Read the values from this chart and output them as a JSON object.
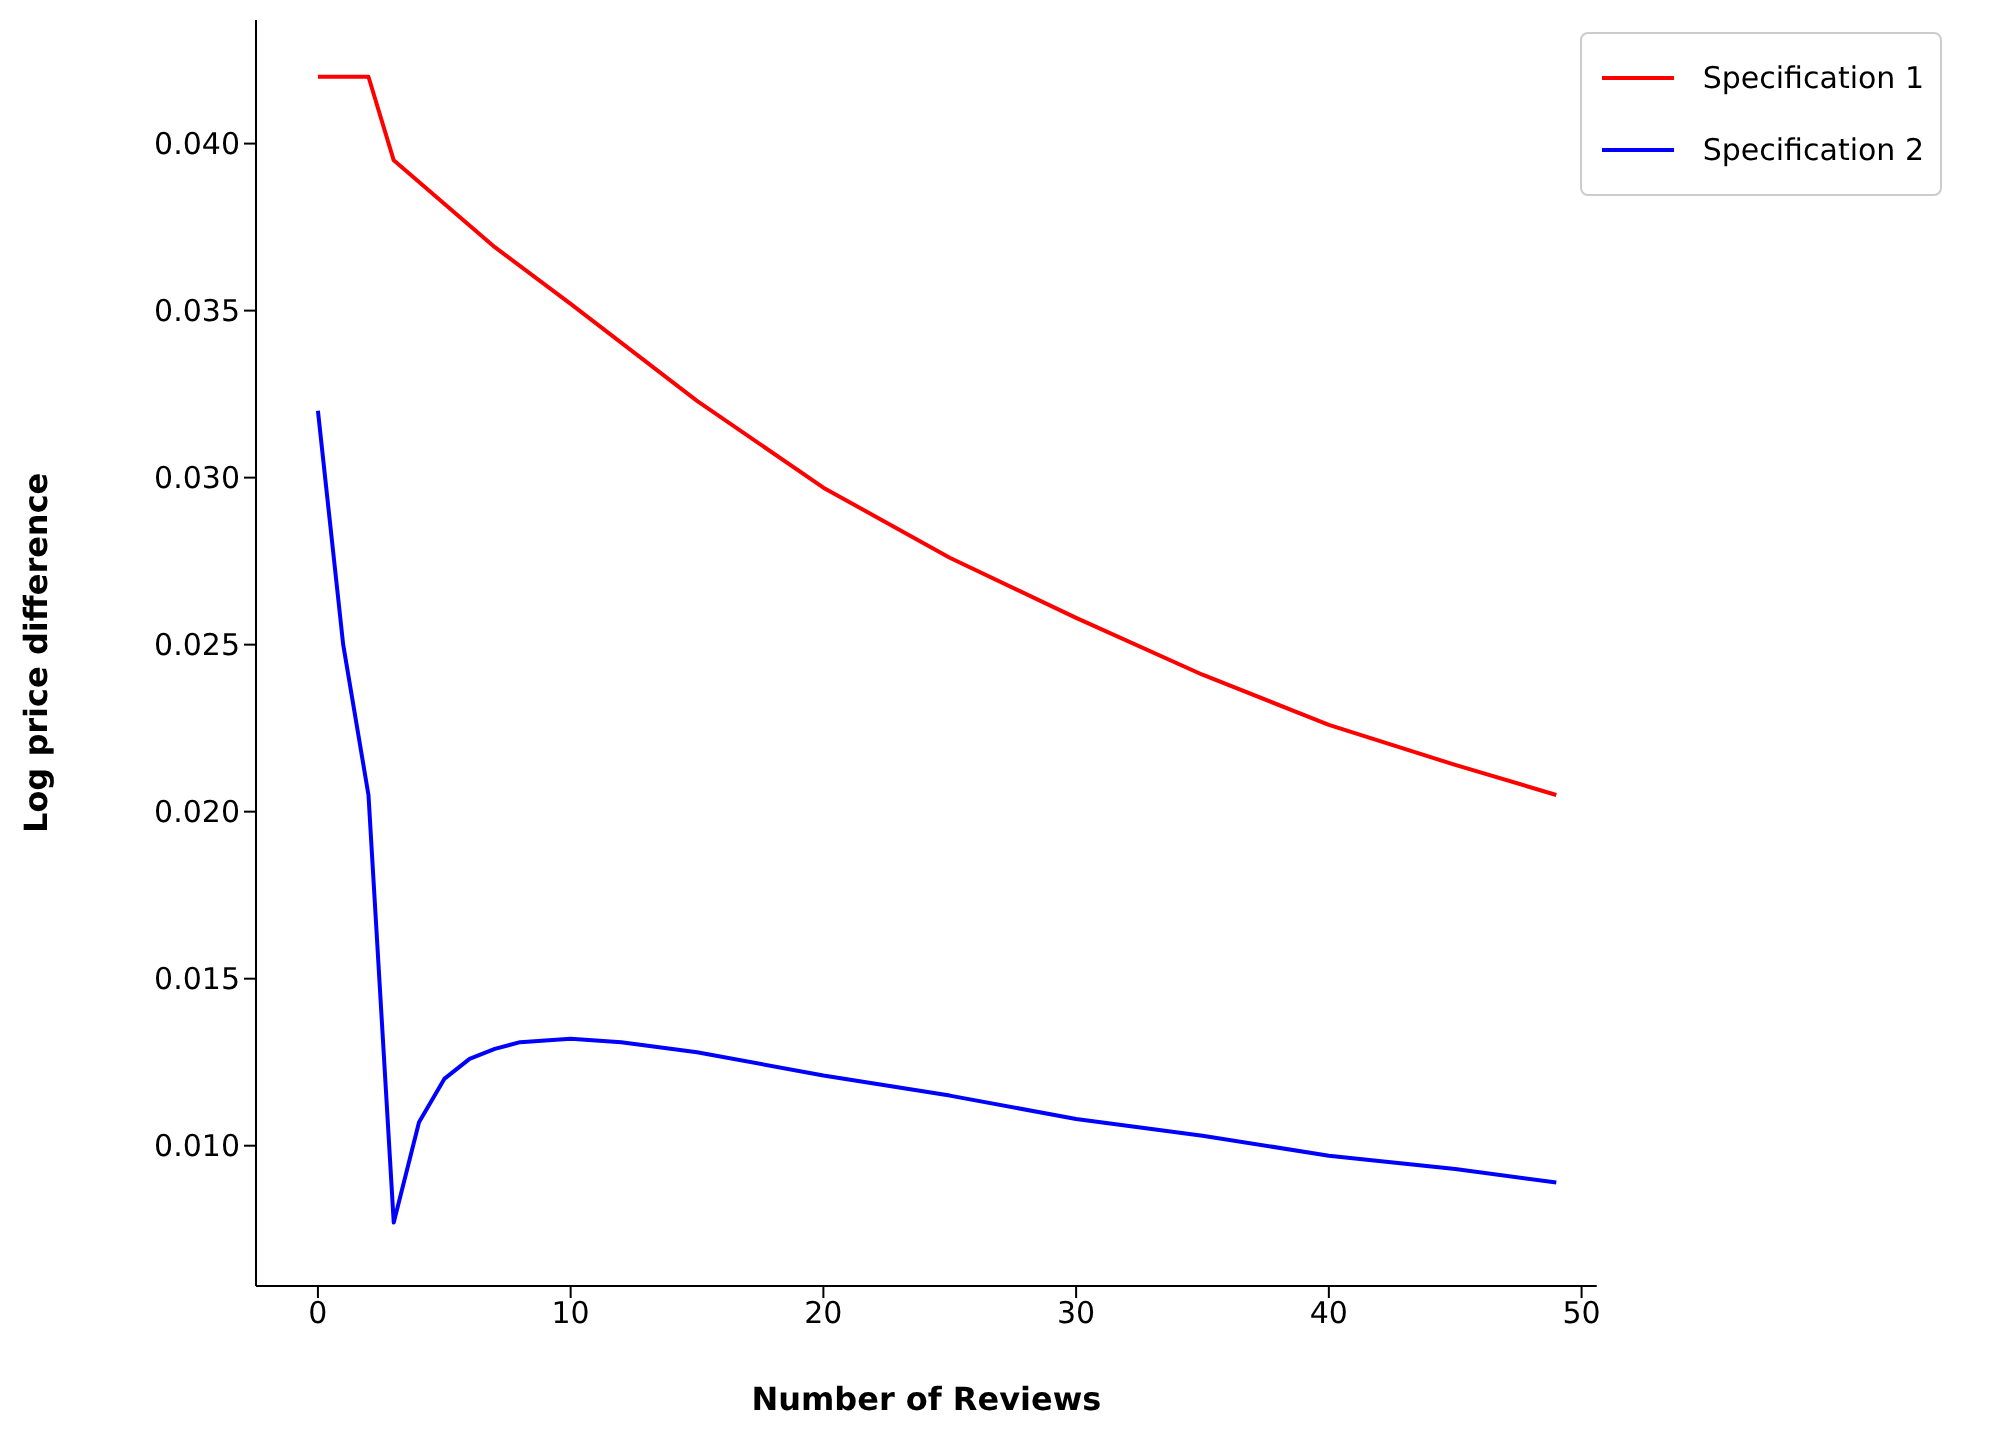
{
  "chart_data": {
    "type": "line",
    "xlabel": "Number of Reviews",
    "ylabel": "Log price difference",
    "xlim": [
      -2.45,
      50.6
    ],
    "xticks": [
      0,
      10,
      20,
      30,
      40,
      50
    ],
    "ylim": [
      0.0058,
      0.0437
    ],
    "yticks": [
      {
        "value": 0.01,
        "label": "0.010"
      },
      {
        "value": 0.015,
        "label": "0.015"
      },
      {
        "value": 0.02,
        "label": "0.020"
      },
      {
        "value": 0.025,
        "label": "0.025"
      },
      {
        "value": 0.03,
        "label": "0.030"
      },
      {
        "value": 0.035,
        "label": "0.035"
      },
      {
        "value": 0.04,
        "label": "0.040"
      }
    ],
    "grid": false,
    "legend": "top right",
    "marker": "none",
    "line_style": "solid",
    "series": [
      {
        "name": "Specification 1",
        "color": "#ff0000",
        "x": [
          0,
          1,
          2,
          3,
          5,
          7,
          10,
          15,
          20,
          25,
          30,
          35,
          40,
          45,
          49
        ],
        "values": [
          0.042,
          0.042,
          0.042,
          0.0395,
          0.0382,
          0.0369,
          0.0352,
          0.0323,
          0.0297,
          0.0276,
          0.0258,
          0.0241,
          0.0226,
          0.0214,
          0.0205
        ]
      },
      {
        "name": "Specification 2",
        "color": "#0000ff",
        "x": [
          0,
          1,
          2,
          3,
          4,
          5,
          6,
          7,
          8,
          10,
          12,
          15,
          20,
          25,
          30,
          35,
          40,
          45,
          49
        ],
        "values": [
          0.032,
          0.025,
          0.0205,
          0.0077,
          0.0107,
          0.012,
          0.0126,
          0.0129,
          0.0131,
          0.0132,
          0.0131,
          0.0128,
          0.0121,
          0.0115,
          0.0108,
          0.0103,
          0.0097,
          0.0093,
          0.0089
        ]
      }
    ]
  }
}
